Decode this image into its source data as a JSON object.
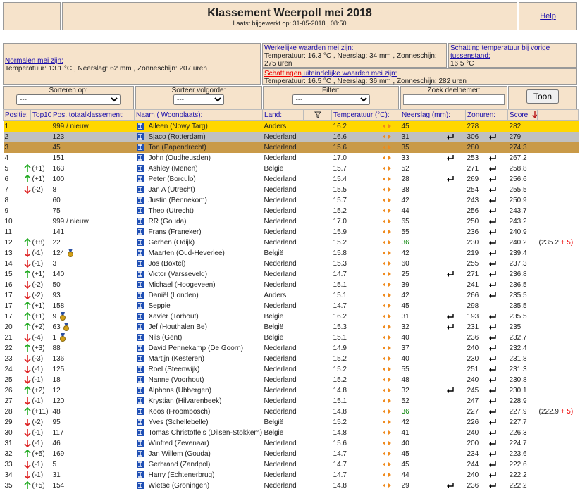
{
  "header": {
    "title": "Klassement Weerpoll mei 2018",
    "subtitle": "Laatst bijgewerkt op: 31-05-2018 , 08:50",
    "help": "Help"
  },
  "info": {
    "normalen_title": "Normalen mei zijn:",
    "normalen": "Temperatuur: 13.1 °C , Neerslag: 62 mm , Zonneschijn: 207 uren",
    "werkelijk_title": "Werkelijke waarden mei zijn:",
    "werkelijk": "Temperatuur: 16.3 °C , Neerslag: 34 mm , Zonneschijn: 275 uren",
    "vorige_title": "Schatting temperatuur bij vorige tussenstand:",
    "vorige": "16.5 °C",
    "schattingen_link": "Schattingen",
    "schattingen_title": " uiteindelijke waarden mei zijn:",
    "schattingen": "Temperatuur: 16.5 °C , Neerslag: 36 mm , Zonneschijn: 282 uren"
  },
  "filters": {
    "sorteren": "Sorteren op:",
    "sorteren_value": "---",
    "volgorde": "Sorteer volgorde:",
    "volgorde_value": "---",
    "filter": "Filter:",
    "filter_value": "---",
    "zoek": "Zoek deelnemer:",
    "button": "Toon"
  },
  "columns": {
    "positie": "Positie:",
    "top10": "Top10",
    "totaal": "Pos. totaalklassement:",
    "naam": "Naam ( Woonplaats):",
    "land": "Land:",
    "temp": "Temperatuur (°C):",
    "neerslag": "Neerslag (mm):",
    "zon": "Zonuren:",
    "score": "Score:"
  },
  "rows": [
    {
      "pos": "1",
      "change": "",
      "tot": "999 / nieuw",
      "name": "Aileen (Nowy Targ)",
      "land": "Anders",
      "temp": "16.2",
      "neerslag": "45",
      "zon": "278",
      "score": "282",
      "bg": "#ffd700"
    },
    {
      "pos": "2",
      "change": "",
      "tot": "123",
      "name": "Sjaco (Rotterdam)",
      "land": "Nederland",
      "temp": "16.6",
      "neerslag": "31",
      "n_icon": true,
      "zon": "306",
      "z_icon": true,
      "score": "279",
      "bg": "#c0c0c0"
    },
    {
      "pos": "3",
      "change": "",
      "tot": "45",
      "name": "Ton (Papendrecht)",
      "land": "Nederland",
      "temp": "15.6",
      "neerslag": "35",
      "zon": "280",
      "score": "274.3",
      "bg": "#c99a48"
    },
    {
      "pos": "4",
      "change": "",
      "tot": "151",
      "name": "John (Oudheusden)",
      "land": "Nederland",
      "temp": "17.0",
      "neerslag": "33",
      "n_icon": true,
      "zon": "253",
      "z_icon": true,
      "score": "267.2"
    },
    {
      "pos": "5",
      "change": "(+1)",
      "tot": "163",
      "name": "Ashley (Menen)",
      "land": "België",
      "temp": "15.7",
      "neerslag": "52",
      "zon": "271",
      "z_icon": true,
      "score": "258.8"
    },
    {
      "pos": "6",
      "change": "(+1)",
      "tot": "100",
      "name": "Peter (Borculo)",
      "land": "Nederland",
      "temp": "15.4",
      "neerslag": "28",
      "n_icon": true,
      "zon": "269",
      "z_icon": true,
      "score": "256.6"
    },
    {
      "pos": "7",
      "change": "(-2)",
      "tot": "8",
      "name": "Jan A (Utrecht)",
      "land": "Nederland",
      "temp": "15.5",
      "neerslag": "38",
      "zon": "254",
      "z_icon": true,
      "score": "255.5"
    },
    {
      "pos": "8",
      "change": "",
      "tot": "60",
      "name": "Justin (Bennekom)",
      "land": "Nederland",
      "temp": "15.7",
      "neerslag": "42",
      "zon": "243",
      "z_icon": true,
      "score": "250.9"
    },
    {
      "pos": "9",
      "change": "",
      "tot": "75",
      "name": "Theo (Utrecht)",
      "land": "Nederland",
      "temp": "15.2",
      "neerslag": "44",
      "zon": "256",
      "z_icon": true,
      "score": "243.7"
    },
    {
      "pos": "10",
      "change": "",
      "tot": "999 / nieuw",
      "name": "RR (Gouda)",
      "land": "Nederland",
      "temp": "17.0",
      "neerslag": "65",
      "zon": "250",
      "z_icon": true,
      "score": "243.2"
    },
    {
      "pos": "11",
      "change": "",
      "tot": "141",
      "name": "Frans (Franeker)",
      "land": "Nederland",
      "temp": "15.9",
      "neerslag": "55",
      "zon": "236",
      "z_icon": true,
      "score": "240.9"
    },
    {
      "pos": "12",
      "change": "(+8)",
      "tot": "22",
      "name": "Gerben (Odijk)",
      "land": "Nederland",
      "temp": "15.2",
      "neerslag": "36",
      "n_color": "#008000",
      "zon": "230",
      "z_icon": true,
      "score": "240.2",
      "bonus_base": "(235.2",
      "bonus_plus": "+ 5)"
    },
    {
      "pos": "13",
      "change": "(-1)",
      "tot": "124",
      "medal": true,
      "name": "Maarten (Oud-Heverlee)",
      "land": "België",
      "temp": "15.8",
      "neerslag": "42",
      "zon": "219",
      "z_icon": true,
      "score": "239.4"
    },
    {
      "pos": "14",
      "change": "(-1)",
      "tot": "3",
      "name": "Jos (Boxtel)",
      "land": "Nederland",
      "temp": "15.3",
      "neerslag": "60",
      "zon": "255",
      "z_icon": true,
      "score": "237.3"
    },
    {
      "pos": "15",
      "change": "(+1)",
      "tot": "140",
      "name": "Victor (Varsseveld)",
      "land": "Nederland",
      "temp": "14.7",
      "neerslag": "25",
      "n_icon": true,
      "zon": "271",
      "z_icon": true,
      "score": "236.8"
    },
    {
      "pos": "16",
      "change": "(-2)",
      "tot": "50",
      "name": "Michael (Hoogeveen)",
      "land": "Nederland",
      "temp": "15.1",
      "neerslag": "39",
      "zon": "241",
      "z_icon": true,
      "score": "236.5"
    },
    {
      "pos": "17",
      "change": "(-2)",
      "tot": "93",
      "name": "Daniël (Londen)",
      "land": "Anders",
      "temp": "15.1",
      "neerslag": "42",
      "zon": "266",
      "z_icon": true,
      "score": "235.5"
    },
    {
      "pos": "17",
      "change": "(+1)",
      "tot": "158",
      "name": "Seppie",
      "land": "Nederland",
      "temp": "14.7",
      "neerslag": "45",
      "zon": "298",
      "score": "235.5"
    },
    {
      "pos": "17",
      "change": "(+1)",
      "tot": "9",
      "medal": true,
      "name": "Xavier (Torhout)",
      "land": "België",
      "temp": "16.2",
      "neerslag": "31",
      "n_icon": true,
      "zon": "193",
      "z_icon": true,
      "score": "235.5"
    },
    {
      "pos": "20",
      "change": "(+2)",
      "tot": "63",
      "medal": true,
      "name": "Jef (Houthalen Be)",
      "land": "België",
      "temp": "15.3",
      "neerslag": "32",
      "n_icon": true,
      "zon": "231",
      "z_icon": true,
      "score": "235"
    },
    {
      "pos": "21",
      "change": "(-4)",
      "tot": "1",
      "medal": true,
      "name": "Nils (Gent)",
      "land": "België",
      "temp": "15.1",
      "neerslag": "40",
      "zon": "236",
      "z_icon": true,
      "score": "232.7"
    },
    {
      "pos": "22",
      "change": "(+3)",
      "tot": "88",
      "name": "David Pennekamp (De Goorn)",
      "land": "Nederland",
      "temp": "14.9",
      "neerslag": "37",
      "zon": "240",
      "z_icon": true,
      "score": "232.4"
    },
    {
      "pos": "23",
      "change": "(-3)",
      "tot": "136",
      "name": "Martijn (Kesteren)",
      "land": "Nederland",
      "temp": "15.2",
      "neerslag": "40",
      "zon": "230",
      "z_icon": true,
      "score": "231.8"
    },
    {
      "pos": "24",
      "change": "(-1)",
      "tot": "125",
      "name": "Roel (Steenwijk)",
      "land": "Nederland",
      "temp": "15.2",
      "neerslag": "55",
      "zon": "251",
      "z_icon": true,
      "score": "231.3"
    },
    {
      "pos": "25",
      "change": "(-1)",
      "tot": "18",
      "name": "Nanne (Voorhout)",
      "land": "Nederland",
      "temp": "15.2",
      "neerslag": "48",
      "zon": "240",
      "z_icon": true,
      "score": "230.8"
    },
    {
      "pos": "26",
      "change": "(+2)",
      "tot": "12",
      "name": "Alphons (Ubbergen)",
      "land": "Nederland",
      "temp": "14.8",
      "neerslag": "32",
      "n_icon": true,
      "zon": "245",
      "z_icon": true,
      "score": "230.1"
    },
    {
      "pos": "27",
      "change": "(-1)",
      "tot": "120",
      "name": "Krystian (Hilvarenbeek)",
      "land": "Nederland",
      "temp": "15.1",
      "neerslag": "52",
      "zon": "247",
      "z_icon": true,
      "score": "228.9"
    },
    {
      "pos": "28",
      "change": "(+11)",
      "tot": "48",
      "name": "Koos (Froombosch)",
      "land": "Nederland",
      "temp": "14.8",
      "neerslag": "36",
      "n_color": "#008000",
      "zon": "227",
      "z_icon": true,
      "score": "227.9",
      "bonus_base": "(222.9",
      "bonus_plus": "+ 5)"
    },
    {
      "pos": "29",
      "change": "(-2)",
      "tot": "95",
      "name": "Yves (Schellebelle)",
      "land": "België",
      "temp": "15.2",
      "neerslag": "42",
      "zon": "226",
      "z_icon": true,
      "score": "227.7"
    },
    {
      "pos": "30",
      "change": "(-1)",
      "tot": "117",
      "name": "Tomas Christoffels (Dilsen-Stokkem)",
      "land": "België",
      "temp": "14.8",
      "neerslag": "41",
      "zon": "240",
      "z_icon": true,
      "score": "226.3"
    },
    {
      "pos": "31",
      "change": "(-1)",
      "tot": "46",
      "name": "Winfred (Zevenaar)",
      "land": "Nederland",
      "temp": "15.6",
      "neerslag": "40",
      "zon": "200",
      "z_icon": true,
      "score": "224.7"
    },
    {
      "pos": "32",
      "change": "(+5)",
      "tot": "169",
      "name": "Jan Willem (Gouda)",
      "land": "Nederland",
      "temp": "14.7",
      "neerslag": "45",
      "zon": "234",
      "z_icon": true,
      "score": "223.6"
    },
    {
      "pos": "33",
      "change": "(-1)",
      "tot": "5",
      "name": "Gerbrand (Zandpol)",
      "land": "Nederland",
      "temp": "14.7",
      "neerslag": "45",
      "zon": "244",
      "z_icon": true,
      "score": "222.6"
    },
    {
      "pos": "34",
      "change": "(-1)",
      "tot": "31",
      "name": "Harry (Echtenerbrug)",
      "land": "Nederland",
      "temp": "14.7",
      "neerslag": "44",
      "zon": "240",
      "z_icon": true,
      "score": "222.2"
    },
    {
      "pos": "35",
      "change": "(+5)",
      "tot": "154",
      "name": "Wietse (Groningen)",
      "land": "Nederland",
      "temp": "14.8",
      "neerslag": "29",
      "n_icon": true,
      "zon": "236",
      "z_icon": true,
      "score": "222.2"
    }
  ]
}
